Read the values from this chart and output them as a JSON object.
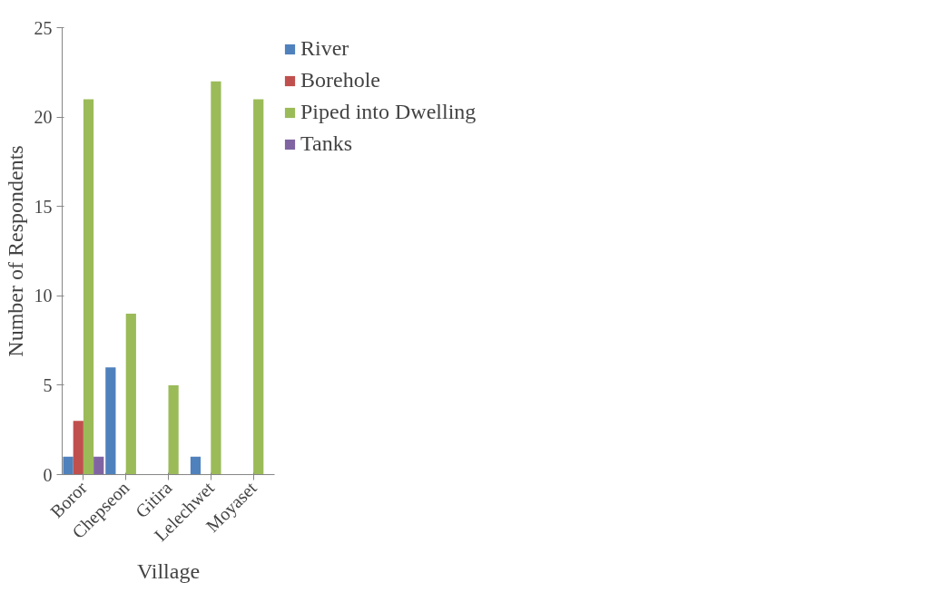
{
  "chart_data": {
    "type": "bar",
    "xlabel": "Village",
    "ylabel": "Number of Respondents",
    "categories": [
      "Boror",
      "Chepseon",
      "Gitira",
      "Lelechwet",
      "Moyaset"
    ],
    "series": [
      {
        "name": "River",
        "color": "#4f81bd",
        "values": [
          1,
          6,
          0,
          1,
          0
        ]
      },
      {
        "name": "Borehole",
        "color": "#c0504d",
        "values": [
          3,
          0,
          0,
          0,
          0
        ]
      },
      {
        "name": "Piped into Dwelling",
        "color": "#9bbb59",
        "values": [
          21,
          9,
          5,
          22,
          21
        ]
      },
      {
        "name": "Tanks",
        "color": "#8064a2",
        "values": [
          1,
          0,
          0,
          0,
          0
        ]
      }
    ],
    "ylim": [
      0,
      25
    ],
    "yticks": [
      0,
      5,
      10,
      15,
      20,
      25
    ],
    "grid": false,
    "legend": "top right"
  }
}
